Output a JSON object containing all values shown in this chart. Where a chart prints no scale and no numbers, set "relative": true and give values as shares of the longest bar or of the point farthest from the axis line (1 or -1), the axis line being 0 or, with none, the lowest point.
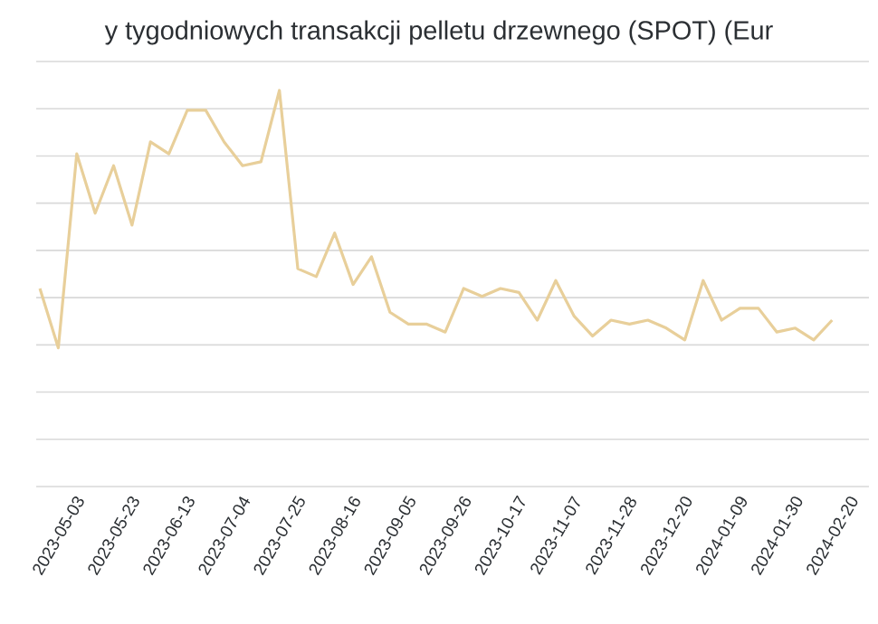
{
  "chart_data": {
    "type": "line",
    "title": "y tygodniowych transakcji pelletu drzewnego (SPOT) (Eur",
    "categories": [
      null,
      "2023-05-03",
      null,
      null,
      "2023-05-23",
      null,
      null,
      "2023-06-13",
      null,
      null,
      "2023-07-04",
      null,
      null,
      "2023-07-25",
      null,
      null,
      "2023-08-16",
      null,
      null,
      "2023-09-05",
      null,
      null,
      "2023-09-26",
      null,
      null,
      "2023-10-17",
      null,
      null,
      "2023-11-07",
      null,
      null,
      "2023-11-28",
      null,
      null,
      "2023-12-20",
      null,
      null,
      "2024-01-09",
      null,
      null,
      "2024-01-30",
      null,
      null,
      "2024-02-20"
    ],
    "series": [
      {
        "color": "#e8cf9a",
        "values": [
          0.5,
          0.35,
          0.84,
          0.69,
          0.81,
          0.66,
          0.87,
          0.84,
          0.95,
          0.95,
          0.87,
          0.81,
          0.82,
          1.0,
          0.55,
          0.53,
          0.64,
          0.51,
          0.58,
          0.44,
          0.41,
          0.41,
          0.39,
          0.5,
          0.48,
          0.5,
          0.49,
          0.42,
          0.52,
          0.43,
          0.38,
          0.42,
          0.41,
          0.42,
          0.4,
          0.37,
          0.52,
          0.42,
          0.45,
          0.45,
          0.39,
          0.4,
          0.37,
          0.42
        ]
      }
    ],
    "relative": true,
    "grid": "y"
  }
}
